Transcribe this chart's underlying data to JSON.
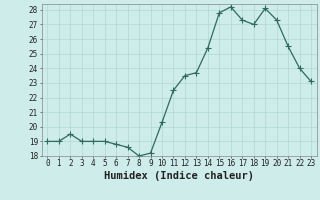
{
  "x": [
    0,
    1,
    2,
    3,
    4,
    5,
    6,
    7,
    8,
    9,
    10,
    11,
    12,
    13,
    14,
    15,
    16,
    17,
    18,
    19,
    20,
    21,
    22,
    23
  ],
  "y": [
    19,
    19,
    19.5,
    19,
    19,
    19,
    18.8,
    18.6,
    18.0,
    18.2,
    20.3,
    22.5,
    23.5,
    23.7,
    25.4,
    27.8,
    28.2,
    27.3,
    27.0,
    28.1,
    27.3,
    25.5,
    24.0,
    23.1
  ],
  "line_color": "#2e6b5e",
  "marker": "+",
  "marker_size": 4,
  "bg_color": "#ceecea",
  "grid_color": "#b0d8d4",
  "xlabel": "Humidex (Indice chaleur)",
  "xlim": [
    -0.5,
    23.5
  ],
  "ylim": [
    18,
    28.4
  ],
  "yticks": [
    18,
    19,
    20,
    21,
    22,
    23,
    24,
    25,
    26,
    27,
    28
  ],
  "xticks": [
    0,
    1,
    2,
    3,
    4,
    5,
    6,
    7,
    8,
    9,
    10,
    11,
    12,
    13,
    14,
    15,
    16,
    17,
    18,
    19,
    20,
    21,
    22,
    23
  ],
  "tick_fontsize": 5.5,
  "xlabel_fontsize": 7.5
}
